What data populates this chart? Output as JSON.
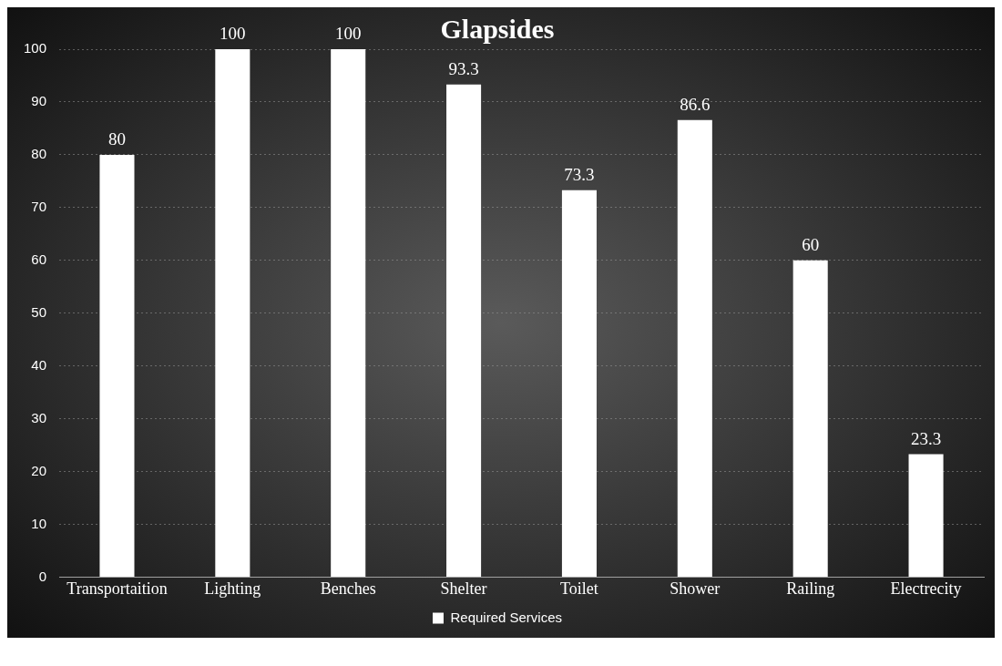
{
  "chart_data": {
    "type": "bar",
    "title": "Glapsides",
    "categories": [
      "Transportaition",
      "Lighting",
      "Benches",
      "Shelter",
      "Toilet",
      "Shower",
      "Railing",
      "Electrecity"
    ],
    "series": [
      {
        "name": "Required Services",
        "color": "#ffffff",
        "values": [
          80,
          100,
          100,
          93.3,
          73.3,
          86.6,
          60,
          23.3
        ]
      }
    ],
    "ylim": [
      0,
      100
    ],
    "yticks": [
      0,
      10,
      20,
      30,
      40,
      50,
      60,
      70,
      80,
      90,
      100
    ],
    "grid": "y",
    "legend": "bottom",
    "data_labels": true
  }
}
